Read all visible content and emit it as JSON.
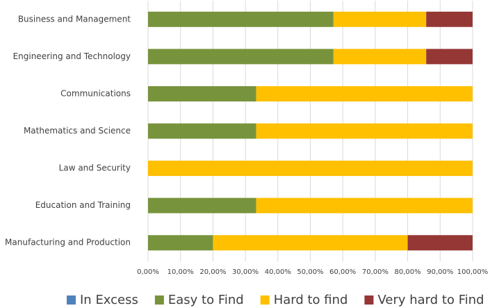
{
  "chart_data": {
    "type": "stacked_barh",
    "categories": [
      "Business and Management",
      "Engineering and Technology",
      "Communications",
      "Mathematics and Science",
      "Law and Security",
      "Education and Training",
      "Manufacturing and Production"
    ],
    "series": [
      {
        "name": "In Excess",
        "color": "#4f81bd",
        "values": [
          0,
          0,
          0,
          0,
          0,
          0,
          0
        ]
      },
      {
        "name": "Easy to Find",
        "color": "#77933c",
        "values": [
          57.14,
          57.14,
          33.33,
          33.33,
          0,
          33.33,
          20
        ]
      },
      {
        "name": "Hard to find",
        "color": "#ffc000",
        "values": [
          28.57,
          28.57,
          66.67,
          66.67,
          100,
          66.67,
          60
        ]
      },
      {
        "name": "Very hard to Find",
        "color": "#953735",
        "values": [
          14.29,
          14.29,
          0,
          0,
          0,
          0,
          20
        ]
      }
    ],
    "xlim": [
      0,
      100
    ],
    "xticks": [
      {
        "value": 0,
        "label": "0,00%"
      },
      {
        "value": 10,
        "label": "10,00%"
      },
      {
        "value": 20,
        "label": "20,00%"
      },
      {
        "value": 30,
        "label": "30,00%"
      },
      {
        "value": 40,
        "label": "40,00%"
      },
      {
        "value": 50,
        "label": "50,00%"
      },
      {
        "value": 60,
        "label": "60,00%"
      },
      {
        "value": 70,
        "label": "70,00%"
      },
      {
        "value": 80,
        "label": "80,00%"
      },
      {
        "value": 90,
        "label": "90,00%"
      },
      {
        "value": 100,
        "label": "100,00%"
      }
    ],
    "grid": true,
    "legend": "bottom"
  }
}
